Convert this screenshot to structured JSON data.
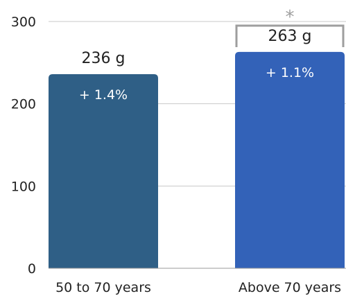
{
  "chart_data": {
    "type": "bar",
    "categories": [
      "50 to 70 years",
      "Above 70 years"
    ],
    "values": [
      236,
      263
    ],
    "value_labels": [
      "236 g",
      "263 g"
    ],
    "inner_labels": [
      "+ 1.4%",
      "+ 1.1%"
    ],
    "colors": [
      "#2f5f86",
      "#3362b8"
    ],
    "title": "",
    "xlabel": "",
    "ylabel": "",
    "ylim": [
      0,
      300
    ],
    "yticks": [
      0,
      100,
      200,
      300
    ],
    "grid": true,
    "significance": {
      "marker": "*",
      "color": "#9e9e9e",
      "bars": [
        1
      ]
    }
  }
}
